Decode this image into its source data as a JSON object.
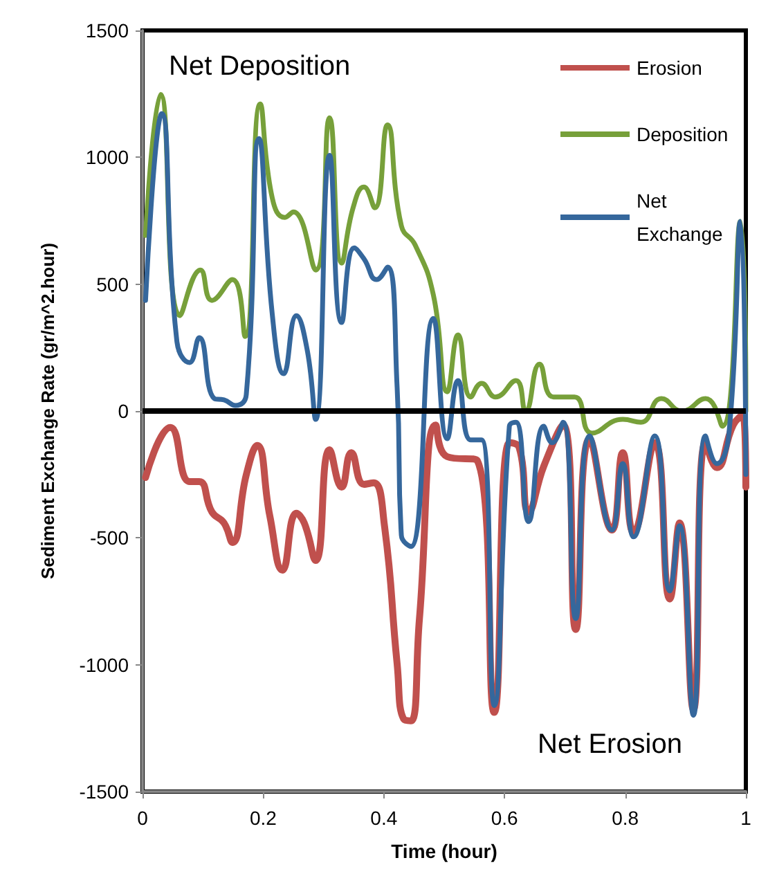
{
  "chart_data": {
    "type": "line",
    "xlabel": "Time (hour)",
    "ylabel": "Sediment Exchange Rate (gr/m^2.hour)",
    "xlim": [
      0,
      1
    ],
    "xticks": [
      0,
      0.2,
      0.4,
      0.6,
      0.8,
      1
    ],
    "ylim": [
      -1500,
      1500
    ],
    "yticks": [
      -1500,
      -1000,
      -500,
      0,
      500,
      1000,
      1500
    ],
    "grid": false,
    "legend": "top right",
    "marker": "none",
    "line_style": "solid",
    "annotations": [
      "Net Deposition",
      "Net Erosion"
    ],
    "ref_lines": [
      {
        "axis": "y",
        "value": 0,
        "color": "#000000"
      }
    ],
    "series": [
      {
        "name": "Erosion",
        "color": "#c0504d",
        "x": [
          0.005,
          0.046,
          0.078,
          0.094,
          0.115,
          0.135,
          0.149,
          0.172,
          0.19,
          0.211,
          0.232,
          0.255,
          0.268,
          0.287,
          0.31,
          0.33,
          0.346,
          0.367,
          0.383,
          0.401,
          0.422,
          0.433,
          0.445,
          0.459,
          0.486,
          0.505,
          0.555,
          0.583,
          0.608,
          0.624,
          0.64,
          0.665,
          0.697,
          0.718,
          0.741,
          0.778,
          0.796,
          0.814,
          0.849,
          0.874,
          0.89,
          0.913,
          0.933,
          0.952,
          0.979,
          0.995,
          1
        ],
        "values": [
          -262,
          -65,
          -278,
          -278,
          -398,
          -441,
          -518,
          -251,
          -136,
          -414,
          -627,
          -403,
          -441,
          -589,
          -153,
          -300,
          -164,
          -289,
          -283,
          -452,
          -997,
          -1215,
          -1221,
          -818,
          -55,
          -180,
          -196,
          -1188,
          -125,
          -142,
          -398,
          -218,
          -55,
          -861,
          -109,
          -469,
          -164,
          -480,
          -125,
          -741,
          -441,
          -1177,
          -125,
          -223,
          -55,
          -16,
          -300
        ]
      },
      {
        "name": "Deposition",
        "color": "#77a03a",
        "x": [
          0.005,
          0.03,
          0.062,
          0.096,
          0.115,
          0.149,
          0.17,
          0.195,
          0.215,
          0.236,
          0.25,
          0.287,
          0.31,
          0.33,
          0.349,
          0.367,
          0.385,
          0.406,
          0.429,
          0.452,
          0.482,
          0.505,
          0.523,
          0.544,
          0.562,
          0.585,
          0.619,
          0.635,
          0.658,
          0.681,
          0.716,
          0.745,
          0.796,
          0.826,
          0.86,
          0.894,
          0.933,
          0.961,
          0.991,
          1
        ],
        "values": [
          692,
          1248,
          376,
          556,
          436,
          518,
          294,
          1210,
          840,
          763,
          785,
          556,
          1156,
          583,
          801,
          883,
          801,
          1128,
          730,
          654,
          458,
          76,
          300,
          55,
          109,
          55,
          120,
          0,
          185,
          55,
          55,
          -87,
          -33,
          -44,
          49,
          0,
          49,
          -60,
          747,
          0
        ]
      },
      {
        "name": "Net Exchange",
        "color": "#35679c",
        "x": [
          0.005,
          0.032,
          0.057,
          0.078,
          0.094,
          0.119,
          0.135,
          0.154,
          0.172,
          0.193,
          0.215,
          0.234,
          0.255,
          0.273,
          0.287,
          0.31,
          0.33,
          0.351,
          0.367,
          0.388,
          0.406,
          0.422,
          0.429,
          0.445,
          0.482,
          0.505,
          0.523,
          0.544,
          0.562,
          0.583,
          0.608,
          0.619,
          0.64,
          0.665,
          0.679,
          0.697,
          0.718,
          0.741,
          0.778,
          0.796,
          0.814,
          0.849,
          0.874,
          0.89,
          0.913,
          0.933,
          0.952,
          0.972,
          0.991,
          1
        ],
        "values": [
          436,
          1172,
          273,
          191,
          289,
          49,
          44,
          22,
          65,
          1074,
          382,
          147,
          376,
          240,
          -33,
          1008,
          349,
          643,
          600,
          518,
          567,
          93,
          -490,
          -534,
          365,
          -109,
          120,
          -114,
          -114,
          -1161,
          -60,
          -44,
          -436,
          -60,
          -125,
          -44,
          -818,
          -98,
          -469,
          -207,
          -496,
          -98,
          -709,
          -452,
          -1199,
          -98,
          -207,
          -87,
          747,
          -250
        ]
      }
    ]
  }
}
